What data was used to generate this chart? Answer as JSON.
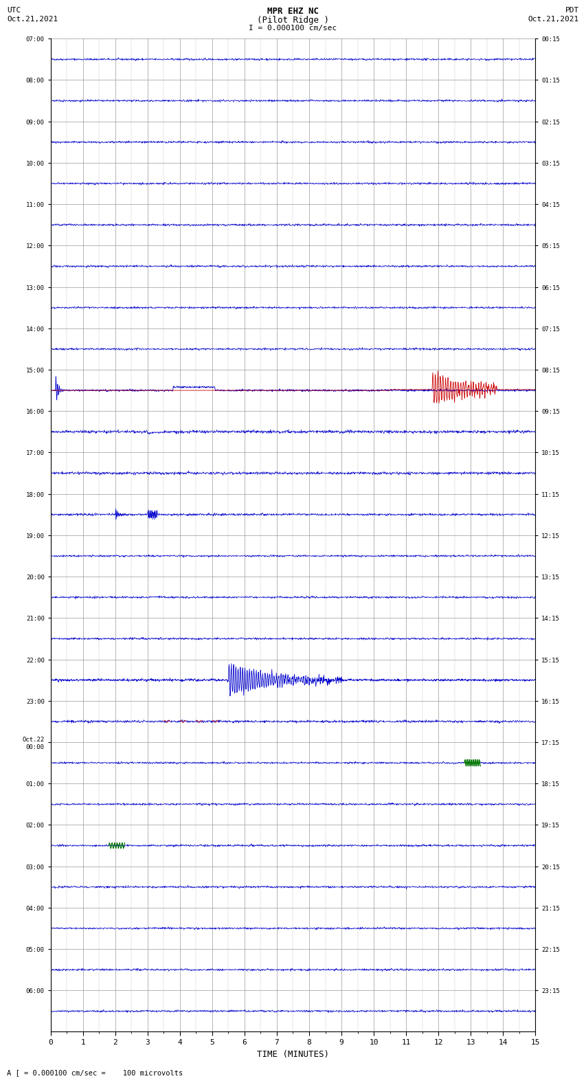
{
  "title_line1": "MPR EHZ NC",
  "title_line2": "(Pilot Ridge )",
  "title_line3": "I = 0.000100 cm/sec",
  "left_header1": "UTC",
  "left_header2": "Oct.21,2021",
  "right_header1": "PDT",
  "right_header2": "Oct.21,2021",
  "footer": "A [ = 0.000100 cm/sec =    100 microvolts",
  "xlabel": "TIME (MINUTES)",
  "xlim": [
    0,
    15
  ],
  "num_rows": 24,
  "left_labels": [
    "07:00",
    "08:00",
    "09:00",
    "10:00",
    "11:00",
    "12:00",
    "13:00",
    "14:00",
    "15:00",
    "16:00",
    "17:00",
    "18:00",
    "19:00",
    "20:00",
    "21:00",
    "22:00",
    "23:00",
    "Oct.22\n00:00",
    "01:00",
    "02:00",
    "03:00",
    "04:00",
    "05:00",
    "06:00"
  ],
  "right_labels": [
    "00:15",
    "01:15",
    "02:15",
    "03:15",
    "04:15",
    "05:15",
    "06:15",
    "07:15",
    "08:15",
    "09:15",
    "10:15",
    "11:15",
    "12:15",
    "13:15",
    "14:15",
    "15:15",
    "16:15",
    "17:15",
    "18:15",
    "19:15",
    "20:15",
    "21:15",
    "22:15",
    "23:15"
  ],
  "background_color": "#ffffff",
  "grid_color": "#999999",
  "signal_color_blue": "#0000cc",
  "signal_color_red": "#cc0000",
  "signal_color_green": "#007700",
  "text_color": "#000000"
}
